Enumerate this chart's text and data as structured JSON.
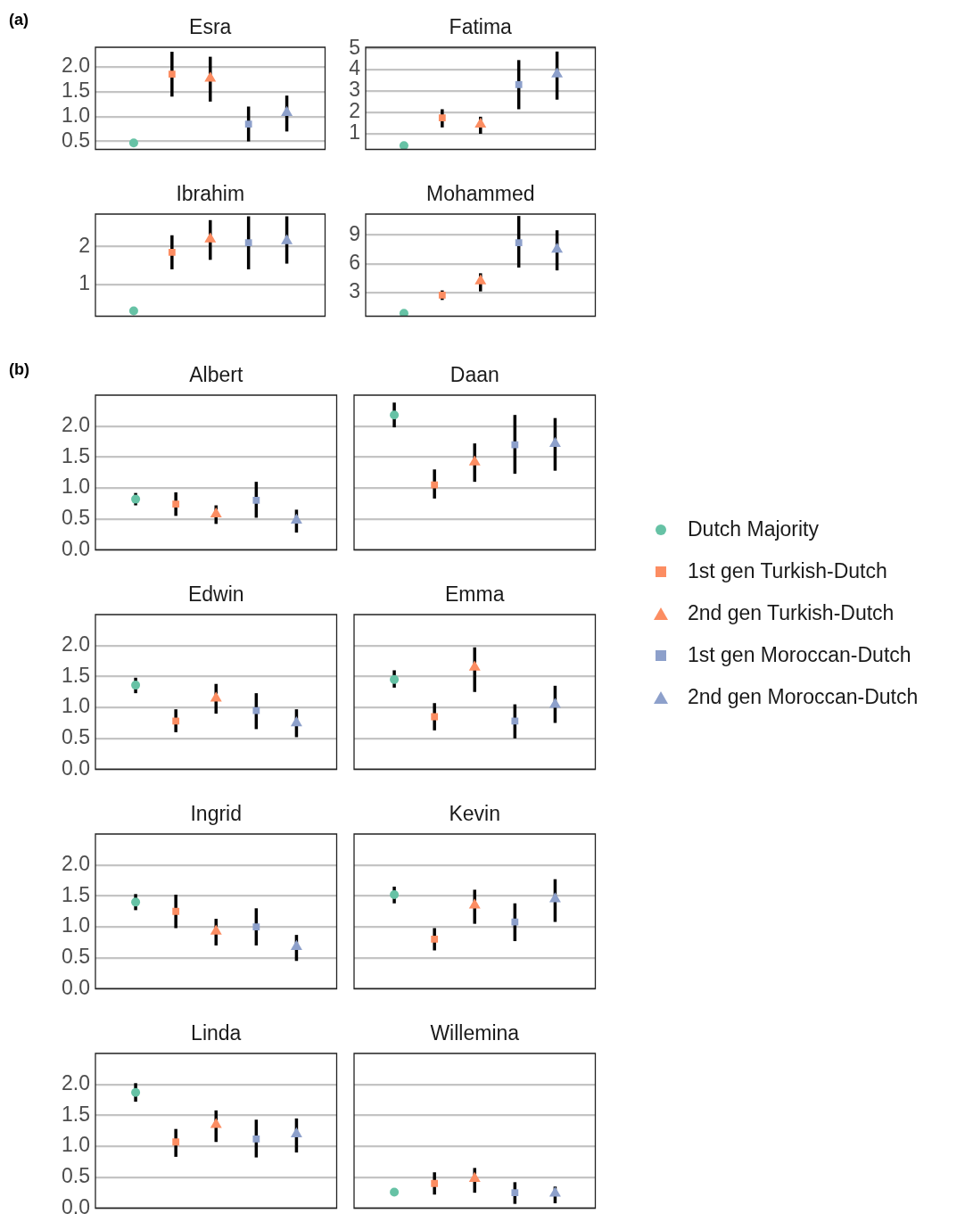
{
  "chart_data": [
    {
      "type": "scatter",
      "title": "Esra",
      "annotations": [
        "(a)"
      ],
      "categories": [
        null,
        null,
        null,
        null,
        null
      ],
      "ylim": [
        0.34,
        2.39
      ],
      "yticks": [
        0.5,
        {
          "value": 1,
          "label": "1.0"
        },
        1.5,
        {
          "value": 2,
          "label": "2.0"
        }
      ],
      "grid": "y",
      "tick_labels": "y",
      "series": [
        {
          "color": "#66c2a5",
          "marker": "circle",
          "values": [
            0.47,
            null,
            null,
            null,
            null
          ],
          "errors": [
            null,
            null,
            null,
            null,
            null
          ]
        },
        {
          "color": "#fc8d62",
          "marker": "square",
          "values": [
            null,
            1.85,
            null,
            null,
            null
          ],
          "errors": [
            null,
            [
              1.4,
              2.3
            ],
            null,
            null,
            null
          ]
        },
        {
          "color": "#fc8d62",
          "marker": "triangle",
          "values": [
            null,
            null,
            1.77,
            null,
            null
          ],
          "errors": [
            null,
            null,
            [
              1.3,
              2.2
            ],
            null,
            null
          ]
        },
        {
          "color": "#8da0cb",
          "marker": "square",
          "values": [
            null,
            null,
            null,
            0.85,
            null
          ],
          "errors": [
            null,
            null,
            null,
            [
              0.5,
              1.2
            ],
            null
          ]
        },
        {
          "color": "#8da0cb",
          "marker": "triangle",
          "values": [
            null,
            null,
            null,
            null,
            1.08
          ],
          "errors": [
            null,
            null,
            null,
            null,
            [
              0.7,
              1.42
            ]
          ]
        }
      ]
    },
    {
      "type": "scatter",
      "title": "Fatima",
      "categories": [
        null,
        null,
        null,
        null,
        null
      ],
      "ylim": [
        0.27,
        5.05
      ],
      "yticks": [
        1,
        2,
        3,
        4,
        5
      ],
      "grid": "y",
      "tick_labels": "y",
      "series": [
        {
          "color": "#66c2a5",
          "marker": "circle",
          "values": [
            0.45,
            null,
            null,
            null,
            null
          ],
          "errors": [
            null,
            null,
            null,
            null,
            null
          ]
        },
        {
          "color": "#fc8d62",
          "marker": "square",
          "values": [
            null,
            1.75,
            null,
            null,
            null
          ],
          "errors": [
            null,
            [
              1.3,
              2.15
            ],
            null,
            null,
            null
          ]
        },
        {
          "color": "#fc8d62",
          "marker": "triangle",
          "values": [
            null,
            null,
            1.45,
            null,
            null
          ],
          "errors": [
            null,
            null,
            [
              1.0,
              1.8
            ],
            null,
            null
          ]
        },
        {
          "color": "#8da0cb",
          "marker": "square",
          "values": [
            null,
            null,
            null,
            3.3,
            null
          ],
          "errors": [
            null,
            null,
            null,
            [
              2.15,
              4.45
            ],
            null
          ]
        },
        {
          "color": "#8da0cb",
          "marker": "triangle",
          "values": [
            null,
            null,
            null,
            null,
            3.8
          ],
          "errors": [
            null,
            null,
            null,
            null,
            [
              2.6,
              4.85
            ]
          ]
        }
      ]
    },
    {
      "type": "scatter",
      "title": "Ibrahim",
      "categories": [
        null,
        null,
        null,
        null,
        null
      ],
      "ylim": [
        0.16,
        2.86
      ],
      "yticks": [
        1,
        2
      ],
      "grid": "y",
      "tick_labels": "y",
      "series": [
        {
          "color": "#66c2a5",
          "marker": "circle",
          "values": [
            0.3,
            null,
            null,
            null,
            null
          ],
          "errors": [
            null,
            null,
            null,
            null,
            null
          ]
        },
        {
          "color": "#fc8d62",
          "marker": "square",
          "values": [
            null,
            1.85,
            null,
            null,
            null
          ],
          "errors": [
            null,
            [
              1.4,
              2.3
            ],
            null,
            null,
            null
          ]
        },
        {
          "color": "#fc8d62",
          "marker": "triangle",
          "values": [
            null,
            null,
            2.2,
            null,
            null
          ],
          "errors": [
            null,
            null,
            [
              1.65,
              2.7
            ],
            null,
            null
          ]
        },
        {
          "color": "#8da0cb",
          "marker": "square",
          "values": [
            null,
            null,
            null,
            2.1,
            null
          ],
          "errors": [
            null,
            null,
            null,
            [
              1.4,
              2.8
            ],
            null
          ]
        },
        {
          "color": "#8da0cb",
          "marker": "triangle",
          "values": [
            null,
            null,
            null,
            null,
            2.15
          ],
          "errors": [
            null,
            null,
            null,
            null,
            [
              1.55,
              2.8
            ]
          ]
        }
      ]
    },
    {
      "type": "scatter",
      "title": "Mohammed",
      "categories": [
        null,
        null,
        null,
        null,
        null
      ],
      "ylim": [
        0.5,
        11.2
      ],
      "yticks": [
        3,
        6,
        9
      ],
      "grid": "y",
      "tick_labels": "y",
      "series": [
        {
          "color": "#66c2a5",
          "marker": "circle",
          "values": [
            0.8,
            null,
            null,
            null,
            null
          ],
          "errors": [
            null,
            null,
            null,
            null,
            null
          ]
        },
        {
          "color": "#fc8d62",
          "marker": "square",
          "values": [
            null,
            2.7,
            null,
            null,
            null
          ],
          "errors": [
            null,
            [
              2.2,
              3.2
            ],
            null,
            null,
            null
          ]
        },
        {
          "color": "#fc8d62",
          "marker": "triangle",
          "values": [
            null,
            null,
            4.2,
            null,
            null
          ],
          "errors": [
            null,
            null,
            [
              3.1,
              5.0
            ],
            null,
            null
          ]
        },
        {
          "color": "#8da0cb",
          "marker": "square",
          "values": [
            null,
            null,
            null,
            8.2,
            null
          ],
          "errors": [
            null,
            null,
            null,
            [
              5.6,
              11.0
            ],
            null
          ]
        },
        {
          "color": "#8da0cb",
          "marker": "triangle",
          "values": [
            null,
            null,
            null,
            null,
            7.5
          ],
          "errors": [
            null,
            null,
            null,
            null,
            [
              5.3,
              9.5
            ]
          ]
        }
      ]
    },
    {
      "type": "scatter",
      "title": "Albert",
      "annotations": [
        "(b)"
      ],
      "categories": [
        null,
        null,
        null,
        null,
        null
      ],
      "ylim": [
        0,
        2.5
      ],
      "yticks": [
        {
          "value": 0,
          "label": "0.0"
        },
        0.5,
        {
          "value": 1,
          "label": "1.0"
        },
        1.5,
        {
          "value": 2,
          "label": "2.0"
        }
      ],
      "grid": "y",
      "tick_labels": "y",
      "series": [
        {
          "color": "#66c2a5",
          "marker": "circle",
          "values": [
            0.82,
            null,
            null,
            null,
            null
          ],
          "errors": [
            [
              0.72,
              0.92
            ],
            null,
            null,
            null,
            null
          ]
        },
        {
          "color": "#fc8d62",
          "marker": "square",
          "values": [
            null,
            0.74,
            null,
            null,
            null
          ],
          "errors": [
            null,
            [
              0.55,
              0.93
            ],
            null,
            null,
            null
          ]
        },
        {
          "color": "#fc8d62",
          "marker": "triangle",
          "values": [
            null,
            null,
            0.58,
            null,
            null
          ],
          "errors": [
            null,
            null,
            [
              0.42,
              0.72
            ],
            null,
            null
          ]
        },
        {
          "color": "#8da0cb",
          "marker": "square",
          "values": [
            null,
            null,
            null,
            0.8,
            null
          ],
          "errors": [
            null,
            null,
            null,
            [
              0.52,
              1.1
            ],
            null
          ]
        },
        {
          "color": "#8da0cb",
          "marker": "triangle",
          "values": [
            null,
            null,
            null,
            null,
            0.48
          ],
          "errors": [
            null,
            null,
            null,
            null,
            [
              0.28,
              0.65
            ]
          ]
        }
      ]
    },
    {
      "type": "scatter",
      "title": "Daan",
      "categories": [
        null,
        null,
        null,
        null,
        null
      ],
      "ylim": [
        0,
        2.5
      ],
      "yticks": [
        0,
        0.5,
        1,
        1.5,
        2
      ],
      "grid": "y",
      "tick_labels": false,
      "legend": "right",
      "series": [
        {
          "name": "Dutch Majority",
          "color": "#66c2a5",
          "marker": "circle",
          "values": [
            2.18,
            null,
            null,
            null,
            null
          ],
          "errors": [
            [
              1.98,
              2.38
            ],
            null,
            null,
            null,
            null
          ]
        },
        {
          "name": "1st gen Turkish-Dutch",
          "color": "#fc8d62",
          "marker": "square",
          "values": [
            null,
            1.05,
            null,
            null,
            null
          ],
          "errors": [
            null,
            [
              0.83,
              1.3
            ],
            null,
            null,
            null
          ]
        },
        {
          "name": "2nd gen Turkish-Dutch",
          "color": "#fc8d62",
          "marker": "triangle",
          "values": [
            null,
            null,
            1.42,
            null,
            null
          ],
          "errors": [
            null,
            null,
            [
              1.1,
              1.72
            ],
            null,
            null
          ]
        },
        {
          "name": "1st gen Moroccan-Dutch",
          "color": "#8da0cb",
          "marker": "square",
          "values": [
            null,
            null,
            null,
            1.7,
            null
          ],
          "errors": [
            null,
            null,
            null,
            [
              1.23,
              2.18
            ],
            null
          ]
        },
        {
          "name": "2nd gen Moroccan-Dutch",
          "color": "#8da0cb",
          "marker": "triangle",
          "values": [
            null,
            null,
            null,
            null,
            1.72
          ],
          "errors": [
            null,
            null,
            null,
            null,
            [
              1.28,
              2.13
            ]
          ]
        }
      ]
    },
    {
      "type": "scatter",
      "title": "Edwin",
      "categories": [
        null,
        null,
        null,
        null,
        null
      ],
      "ylim": [
        0,
        2.5
      ],
      "yticks": [
        {
          "value": 0,
          "label": "0.0"
        },
        0.5,
        {
          "value": 1,
          "label": "1.0"
        },
        1.5,
        {
          "value": 2,
          "label": "2.0"
        }
      ],
      "grid": "y",
      "tick_labels": "y",
      "series": [
        {
          "color": "#66c2a5",
          "marker": "circle",
          "values": [
            1.36,
            null,
            null,
            null,
            null
          ],
          "errors": [
            [
              1.23,
              1.48
            ],
            null,
            null,
            null,
            null
          ]
        },
        {
          "color": "#fc8d62",
          "marker": "square",
          "values": [
            null,
            0.78,
            null,
            null,
            null
          ],
          "errors": [
            null,
            [
              0.6,
              0.97
            ],
            null,
            null,
            null
          ]
        },
        {
          "color": "#fc8d62",
          "marker": "triangle",
          "values": [
            null,
            null,
            1.15,
            null,
            null
          ],
          "errors": [
            null,
            null,
            [
              0.9,
              1.38
            ],
            null,
            null
          ]
        },
        {
          "color": "#8da0cb",
          "marker": "square",
          "values": [
            null,
            null,
            null,
            0.95,
            null
          ],
          "errors": [
            null,
            null,
            null,
            [
              0.65,
              1.23
            ],
            null
          ]
        },
        {
          "color": "#8da0cb",
          "marker": "triangle",
          "values": [
            null,
            null,
            null,
            null,
            0.75
          ],
          "errors": [
            null,
            null,
            null,
            null,
            [
              0.52,
              0.97
            ]
          ]
        }
      ]
    },
    {
      "type": "scatter",
      "title": "Emma",
      "categories": [
        null,
        null,
        null,
        null,
        null
      ],
      "ylim": [
        0,
        2.5
      ],
      "yticks": [
        0,
        0.5,
        1,
        1.5,
        2
      ],
      "grid": "y",
      "tick_labels": false,
      "series": [
        {
          "color": "#66c2a5",
          "marker": "circle",
          "values": [
            1.45,
            null,
            null,
            null,
            null
          ],
          "errors": [
            [
              1.32,
              1.6
            ],
            null,
            null,
            null,
            null
          ]
        },
        {
          "color": "#fc8d62",
          "marker": "square",
          "values": [
            null,
            0.85,
            null,
            null,
            null
          ],
          "errors": [
            null,
            [
              0.63,
              1.07
            ],
            null,
            null,
            null
          ]
        },
        {
          "color": "#fc8d62",
          "marker": "triangle",
          "values": [
            null,
            null,
            1.65,
            null,
            null
          ],
          "errors": [
            null,
            null,
            [
              1.25,
              1.97
            ],
            null,
            null
          ]
        },
        {
          "color": "#8da0cb",
          "marker": "square",
          "values": [
            null,
            null,
            null,
            0.78,
            null
          ],
          "errors": [
            null,
            null,
            null,
            [
              0.5,
              1.05
            ],
            null
          ]
        },
        {
          "color": "#8da0cb",
          "marker": "triangle",
          "values": [
            null,
            null,
            null,
            null,
            1.05
          ],
          "errors": [
            null,
            null,
            null,
            null,
            [
              0.75,
              1.35
            ]
          ]
        }
      ]
    },
    {
      "type": "scatter",
      "title": "Ingrid",
      "categories": [
        null,
        null,
        null,
        null,
        null
      ],
      "ylim": [
        0,
        2.5
      ],
      "yticks": [
        {
          "value": 0,
          "label": "0.0"
        },
        0.5,
        {
          "value": 1,
          "label": "1.0"
        },
        1.5,
        {
          "value": 2,
          "label": "2.0"
        }
      ],
      "grid": "y",
      "tick_labels": "y",
      "series": [
        {
          "color": "#66c2a5",
          "marker": "circle",
          "values": [
            1.4,
            null,
            null,
            null,
            null
          ],
          "errors": [
            [
              1.27,
              1.53
            ],
            null,
            null,
            null,
            null
          ]
        },
        {
          "color": "#fc8d62",
          "marker": "square",
          "values": [
            null,
            1.25,
            null,
            null,
            null
          ],
          "errors": [
            null,
            [
              0.98,
              1.52
            ],
            null,
            null,
            null
          ]
        },
        {
          "color": "#fc8d62",
          "marker": "triangle",
          "values": [
            null,
            null,
            0.93,
            null,
            null
          ],
          "errors": [
            null,
            null,
            [
              0.7,
              1.13
            ],
            null,
            null
          ]
        },
        {
          "color": "#8da0cb",
          "marker": "square",
          "values": [
            null,
            null,
            null,
            1.0,
            null
          ],
          "errors": [
            null,
            null,
            null,
            [
              0.7,
              1.3
            ],
            null
          ]
        },
        {
          "color": "#8da0cb",
          "marker": "triangle",
          "values": [
            null,
            null,
            null,
            null,
            0.68
          ],
          "errors": [
            null,
            null,
            null,
            null,
            [
              0.45,
              0.87
            ]
          ]
        }
      ]
    },
    {
      "type": "scatter",
      "title": "Kevin",
      "categories": [
        null,
        null,
        null,
        null,
        null
      ],
      "ylim": [
        0,
        2.5
      ],
      "yticks": [
        0,
        0.5,
        1,
        1.5,
        2
      ],
      "grid": "y",
      "tick_labels": false,
      "series": [
        {
          "color": "#66c2a5",
          "marker": "circle",
          "values": [
            1.52,
            null,
            null,
            null,
            null
          ],
          "errors": [
            [
              1.38,
              1.65
            ],
            null,
            null,
            null,
            null
          ]
        },
        {
          "color": "#fc8d62",
          "marker": "square",
          "values": [
            null,
            0.8,
            null,
            null,
            null
          ],
          "errors": [
            null,
            [
              0.62,
              0.98
            ],
            null,
            null,
            null
          ]
        },
        {
          "color": "#fc8d62",
          "marker": "triangle",
          "values": [
            null,
            null,
            1.35,
            null,
            null
          ],
          "errors": [
            null,
            null,
            [
              1.05,
              1.6
            ],
            null,
            null
          ]
        },
        {
          "color": "#8da0cb",
          "marker": "square",
          "values": [
            null,
            null,
            null,
            1.08,
            null
          ],
          "errors": [
            null,
            null,
            null,
            [
              0.77,
              1.38
            ],
            null
          ]
        },
        {
          "color": "#8da0cb",
          "marker": "triangle",
          "values": [
            null,
            null,
            null,
            null,
            1.45
          ],
          "errors": [
            null,
            null,
            null,
            null,
            [
              1.08,
              1.77
            ]
          ]
        }
      ]
    },
    {
      "type": "scatter",
      "title": "Linda",
      "categories": [
        null,
        null,
        null,
        null,
        null
      ],
      "ylim": [
        0,
        2.5
      ],
      "yticks": [
        {
          "value": 0,
          "label": "0.0"
        },
        0.5,
        {
          "value": 1,
          "label": "1.0"
        },
        1.5,
        {
          "value": 2,
          "label": "2.0"
        }
      ],
      "grid": "y",
      "tick_labels": "y",
      "series": [
        {
          "color": "#66c2a5",
          "marker": "circle",
          "values": [
            1.87,
            null,
            null,
            null,
            null
          ],
          "errors": [
            [
              1.72,
              2.02
            ],
            null,
            null,
            null,
            null
          ]
        },
        {
          "color": "#fc8d62",
          "marker": "square",
          "values": [
            null,
            1.07,
            null,
            null,
            null
          ],
          "errors": [
            null,
            [
              0.83,
              1.28
            ],
            null,
            null,
            null
          ]
        },
        {
          "color": "#fc8d62",
          "marker": "triangle",
          "values": [
            null,
            null,
            1.35,
            null,
            null
          ],
          "errors": [
            null,
            null,
            [
              1.07,
              1.58
            ],
            null,
            null
          ]
        },
        {
          "color": "#8da0cb",
          "marker": "square",
          "values": [
            null,
            null,
            null,
            1.12,
            null
          ],
          "errors": [
            null,
            null,
            null,
            [
              0.82,
              1.43
            ],
            null
          ]
        },
        {
          "color": "#8da0cb",
          "marker": "triangle",
          "values": [
            null,
            null,
            null,
            null,
            1.2
          ],
          "errors": [
            null,
            null,
            null,
            null,
            [
              0.9,
              1.45
            ]
          ]
        }
      ]
    },
    {
      "type": "scatter",
      "title": "Willemina",
      "categories": [
        null,
        null,
        null,
        null,
        null
      ],
      "ylim": [
        0,
        2.5
      ],
      "yticks": [
        0,
        0.5,
        1,
        1.5,
        2
      ],
      "grid": "y",
      "tick_labels": false,
      "series": [
        {
          "color": "#66c2a5",
          "marker": "circle",
          "values": [
            0.26,
            null,
            null,
            null,
            null
          ],
          "errors": [
            null,
            null,
            null,
            null,
            null
          ]
        },
        {
          "color": "#fc8d62",
          "marker": "square",
          "values": [
            null,
            0.4,
            null,
            null,
            null
          ],
          "errors": [
            null,
            [
              0.22,
              0.58
            ],
            null,
            null,
            null
          ]
        },
        {
          "color": "#fc8d62",
          "marker": "triangle",
          "values": [
            null,
            null,
            0.48,
            null,
            null
          ],
          "errors": [
            null,
            null,
            [
              0.25,
              0.65
            ],
            null,
            null
          ]
        },
        {
          "color": "#8da0cb",
          "marker": "square",
          "values": [
            null,
            null,
            null,
            0.25,
            null
          ],
          "errors": [
            null,
            null,
            null,
            [
              0.07,
              0.42
            ],
            null
          ]
        },
        {
          "color": "#8da0cb",
          "marker": "triangle",
          "values": [
            null,
            null,
            null,
            null,
            0.24
          ],
          "errors": [
            null,
            null,
            null,
            null,
            [
              0.08,
              0.35
            ]
          ]
        }
      ]
    }
  ]
}
